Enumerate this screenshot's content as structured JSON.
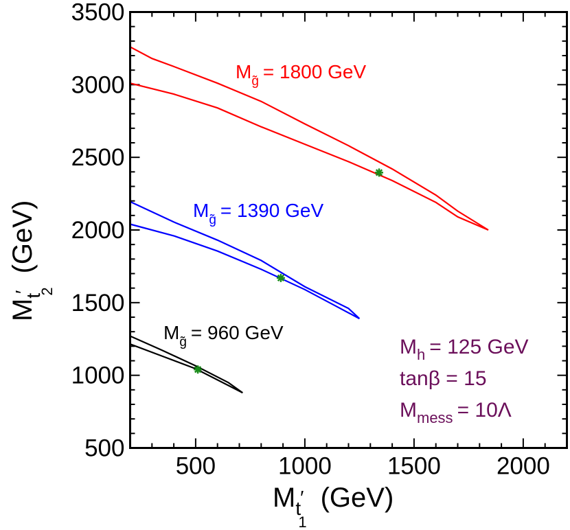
{
  "chart_data": {
    "type": "line",
    "xlabel": {
      "main": "M",
      "sub": "t",
      "prime": "′",
      "subsub": "1",
      "unit": "(GeV)"
    },
    "ylabel": {
      "main": "M",
      "sub": "t",
      "prime": "′",
      "subsub": "2",
      "unit": "(GeV)"
    },
    "xlim": [
      200,
      2200
    ],
    "ylim": [
      500,
      3500
    ],
    "xticks": [
      500,
      1000,
      1500,
      2000
    ],
    "yticks": [
      500,
      1000,
      1500,
      2000,
      2500,
      3000,
      3500
    ],
    "grid": false,
    "legend": "inline",
    "series": [
      {
        "name": "M_g̃ = 1800 GeV",
        "label": {
          "main": "M",
          "sub": "g̃",
          "rest": "= 1800 GeV"
        },
        "color": "#ff0000",
        "upper": [
          [
            200,
            3260
          ],
          [
            300,
            3180
          ],
          [
            400,
            3125
          ],
          [
            600,
            3010
          ],
          [
            800,
            2885
          ],
          [
            1000,
            2730
          ],
          [
            1200,
            2580
          ],
          [
            1400,
            2420
          ],
          [
            1600,
            2240
          ],
          [
            1700,
            2130
          ],
          [
            1840,
            2000
          ]
        ],
        "lower": [
          [
            200,
            3010
          ],
          [
            400,
            2935
          ],
          [
            600,
            2840
          ],
          [
            800,
            2710
          ],
          [
            1000,
            2590
          ],
          [
            1200,
            2470
          ],
          [
            1400,
            2340
          ],
          [
            1600,
            2190
          ],
          [
            1700,
            2090
          ],
          [
            1840,
            2000
          ]
        ],
        "marker": [
          1340,
          2395
        ]
      },
      {
        "name": "M_g̃ = 1390 GeV",
        "label": {
          "main": "M",
          "sub": "g̃",
          "rest": "= 1390 GeV"
        },
        "color": "#0000ff",
        "upper": [
          [
            200,
            2195
          ],
          [
            400,
            2055
          ],
          [
            600,
            1930
          ],
          [
            800,
            1790
          ],
          [
            1000,
            1610
          ],
          [
            1200,
            1460
          ],
          [
            1250,
            1390
          ]
        ],
        "lower": [
          [
            200,
            2040
          ],
          [
            400,
            1960
          ],
          [
            600,
            1855
          ],
          [
            800,
            1730
          ],
          [
            1000,
            1590
          ],
          [
            1150,
            1470
          ],
          [
            1250,
            1390
          ]
        ],
        "marker": [
          890,
          1670
        ]
      },
      {
        "name": "M_g̃ = 960 GeV",
        "label": {
          "main": "M",
          "sub": "g̃",
          "rest": "= 960 GeV"
        },
        "color": "#000000",
        "upper": [
          [
            200,
            1270
          ],
          [
            350,
            1170
          ],
          [
            500,
            1065
          ],
          [
            650,
            950
          ],
          [
            715,
            880
          ]
        ],
        "lower": [
          [
            200,
            1215
          ],
          [
            350,
            1130
          ],
          [
            500,
            1045
          ],
          [
            650,
            930
          ],
          [
            715,
            880
          ]
        ],
        "marker": [
          510,
          1040
        ]
      }
    ],
    "marker_color": "#1a8c1a",
    "params": {
      "color": "#6b0f5a",
      "line1": {
        "main": "M",
        "sub": "h",
        "rest": "= 125 GeV"
      },
      "line2": {
        "text": "tanβ = 15"
      },
      "line3": {
        "main": "M",
        "sub": "mess",
        "rest": "= 10Λ"
      }
    }
  }
}
